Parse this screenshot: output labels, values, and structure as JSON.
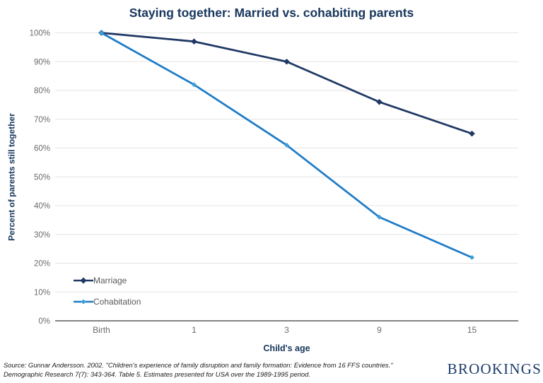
{
  "chart": {
    "title": "Staying together: Married vs. cohabiting parents",
    "x_axis_title": "Child's age",
    "y_axis_title": "Percent of parents still together"
  },
  "chart_data": {
    "type": "line",
    "title": "Staying together: Married vs. cohabiting parents",
    "xlabel": "Child's age",
    "ylabel": "Percent of parents still together",
    "categories": [
      "Birth",
      "1",
      "3",
      "9",
      "15"
    ],
    "series": [
      {
        "name": "Marriage",
        "values": [
          100,
          97,
          90,
          76,
          65
        ],
        "color": "#1f3864",
        "marker_color": "#1f3864"
      },
      {
        "name": "Cohabitation",
        "values": [
          100,
          82,
          61,
          36,
          22
        ],
        "color": "#1e7cc8",
        "marker_color": "#3f9ed9"
      }
    ],
    "ylim": [
      0,
      100
    ],
    "y_ticks": [
      "0%",
      "10%",
      "20%",
      "30%",
      "40%",
      "50%",
      "60%",
      "70%",
      "80%",
      "90%",
      "100%"
    ],
    "grid": true,
    "legend_position": "inside-lower-left"
  },
  "colors": {
    "title": "#17365d",
    "gridline": "#e4e4e4",
    "axis_line": "#3b3b3b",
    "tick_label": "#6b6b6b",
    "legend_text": "#595959",
    "logo": "#1c3c6d"
  },
  "footer": {
    "source_line1": "Source: Gunnar Andersson. 2002. \"Children's experience of family disruption and family formation: Evidence from 16 FFS countries.\"",
    "source_line2": "Demographic Research 7(7): 343-364. Table 5. Estimates presented for USA over the 1989-1995 period.",
    "logo_text": "BROOKINGS"
  }
}
